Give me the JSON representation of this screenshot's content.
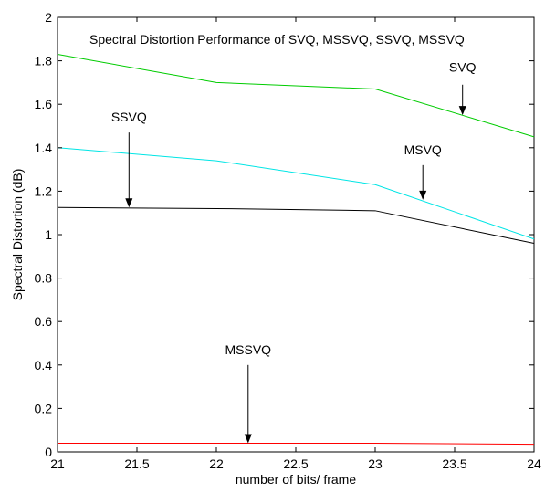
{
  "chart_data": {
    "type": "line",
    "title": "Spectral Distortion Performance of SVQ, MSSVQ, SSVQ, MSSVQ",
    "xlabel": "number of bits/ frame",
    "ylabel": "Spectral Distortion (dB)",
    "xlim": [
      21,
      24
    ],
    "ylim": [
      0,
      2
    ],
    "x_ticks": [
      21,
      21.5,
      22,
      22.5,
      23,
      23.5,
      24
    ],
    "y_ticks": [
      0,
      0.2,
      0.4,
      0.6,
      0.8,
      1,
      1.2,
      1.4,
      1.6,
      1.8,
      2
    ],
    "grid": false,
    "series": [
      {
        "name": "SVQ",
        "color": "#00cc00",
        "x": [
          21,
          22,
          23,
          24
        ],
        "y": [
          1.83,
          1.7,
          1.67,
          1.45
        ]
      },
      {
        "name": "MSVQ",
        "color": "#00e5e5",
        "x": [
          21,
          22,
          23,
          24
        ],
        "y": [
          1.4,
          1.34,
          1.23,
          0.98
        ]
      },
      {
        "name": "SSVQ",
        "color": "#000000",
        "x": [
          21,
          22,
          23,
          24
        ],
        "y": [
          1.125,
          1.12,
          1.11,
          0.96
        ]
      },
      {
        "name": "MSSVQ",
        "color": "#ff0000",
        "x": [
          21,
          22,
          23,
          24
        ],
        "y": [
          0.04,
          0.04,
          0.04,
          0.035
        ]
      }
    ],
    "annotations": [
      {
        "text": "SVQ",
        "label_x": 23.55,
        "label_y": 1.75,
        "arrow_from": [
          23.55,
          1.69
        ],
        "arrow_to": [
          23.55,
          1.55
        ]
      },
      {
        "text": "SSVQ",
        "label_x": 21.45,
        "label_y": 1.52,
        "arrow_from": [
          21.45,
          1.47
        ],
        "arrow_to": [
          21.45,
          1.125
        ]
      },
      {
        "text": "MSVQ",
        "label_x": 23.3,
        "label_y": 1.37,
        "arrow_from": [
          23.3,
          1.32
        ],
        "arrow_to": [
          23.3,
          1.16
        ]
      },
      {
        "text": "MSSVQ",
        "label_x": 22.2,
        "label_y": 0.45,
        "arrow_from": [
          22.2,
          0.4
        ],
        "arrow_to": [
          22.2,
          0.04
        ]
      }
    ]
  }
}
